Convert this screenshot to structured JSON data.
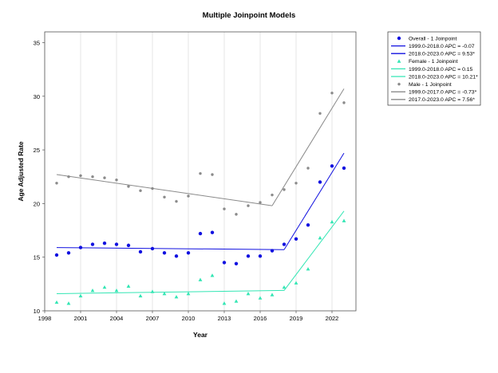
{
  "chart_data": {
    "type": "line",
    "title": "Multiple Joinpoint Models",
    "xlabel": "Year",
    "ylabel": "Age Adjusted Rate",
    "xlim": [
      1998,
      2024
    ],
    "ylim": [
      10,
      36
    ],
    "x_ticks": [
      1998,
      2001,
      2004,
      2007,
      2010,
      2013,
      2016,
      2019,
      2022
    ],
    "y_ticks": [
      10,
      15,
      20,
      25,
      30,
      35
    ],
    "grid": "vertical",
    "legend_position": "right",
    "colors": {
      "overall": "#1010e0",
      "female": "#33e6b4",
      "male": "#8a8a8a"
    },
    "series": [
      {
        "name": "Overall - 1 Joinpoint",
        "marker": "circle",
        "color_key": "overall",
        "x": [
          1999,
          2000,
          2001,
          2002,
          2003,
          2004,
          2005,
          2006,
          2007,
          2008,
          2009,
          2010,
          2011,
          2012,
          2013,
          2014,
          2015,
          2016,
          2017,
          2018,
          2019,
          2020,
          2021,
          2022,
          2023
        ],
        "y": [
          15.2,
          15.4,
          15.9,
          16.2,
          16.3,
          16.2,
          16.1,
          15.5,
          15.8,
          15.4,
          15.1,
          15.4,
          17.2,
          17.3,
          14.5,
          14.4,
          15.1,
          15.1,
          15.6,
          16.2,
          16.7,
          18.0,
          22.0,
          23.5,
          23.3
        ]
      },
      {
        "name": "Female - 1 Joinpoint",
        "marker": "triangle",
        "color_key": "female",
        "x": [
          1999,
          2000,
          2001,
          2002,
          2003,
          2004,
          2005,
          2006,
          2007,
          2008,
          2009,
          2010,
          2011,
          2012,
          2013,
          2014,
          2015,
          2016,
          2017,
          2018,
          2019,
          2020,
          2021,
          2022,
          2023
        ],
        "y": [
          10.8,
          10.7,
          11.4,
          11.9,
          12.2,
          11.9,
          12.3,
          11.4,
          11.8,
          11.6,
          11.3,
          11.6,
          12.9,
          13.3,
          10.7,
          10.9,
          11.6,
          11.2,
          11.5,
          12.2,
          12.6,
          13.9,
          16.8,
          18.3,
          18.4
        ]
      },
      {
        "name": "Male - 1 Joinpoint",
        "marker": "star",
        "color_key": "male",
        "x": [
          1999,
          2000,
          2001,
          2002,
          2003,
          2004,
          2005,
          2006,
          2007,
          2008,
          2009,
          2010,
          2011,
          2012,
          2013,
          2014,
          2015,
          2016,
          2017,
          2018,
          2019,
          2020,
          2021,
          2022,
          2023
        ],
        "y": [
          21.9,
          22.5,
          22.6,
          22.5,
          22.4,
          22.2,
          21.6,
          21.2,
          21.4,
          20.6,
          20.2,
          20.7,
          22.8,
          22.7,
          19.5,
          19.0,
          19.8,
          20.1,
          20.8,
          21.3,
          21.9,
          23.3,
          28.4,
          30.3,
          29.4
        ]
      }
    ],
    "fits": [
      {
        "name": "1999.0-2018.0 APC = -0.07",
        "color_key": "overall",
        "x": [
          1999,
          2018
        ],
        "y": [
          15.9,
          15.7
        ]
      },
      {
        "name": "2018.0-2023.0 APC = 9.53*",
        "color_key": "overall",
        "x": [
          2018,
          2023
        ],
        "y": [
          15.7,
          24.7
        ]
      },
      {
        "name": "1999.0-2018.0 APC = 0.15",
        "color_key": "female",
        "x": [
          1999,
          2018
        ],
        "y": [
          11.6,
          11.9
        ]
      },
      {
        "name": "2018.0-2023.0 APC = 10.21*",
        "color_key": "female",
        "x": [
          2018,
          2023
        ],
        "y": [
          11.9,
          19.3
        ]
      },
      {
        "name": "1999.0-2017.0 APC = -0.73*",
        "color_key": "male",
        "x": [
          1999,
          2017
        ],
        "y": [
          22.7,
          19.8
        ]
      },
      {
        "name": "2017.0-2023.0 APC = 7.56*",
        "color_key": "male",
        "x": [
          2017,
          2023
        ],
        "y": [
          19.8,
          30.7
        ]
      }
    ],
    "legend": [
      {
        "label": "Overall - 1 Joinpoint",
        "kind": "marker",
        "marker": "circle",
        "color_key": "overall"
      },
      {
        "label": "1999.0-2018.0 APC =  -0.07",
        "kind": "line",
        "color_key": "overall"
      },
      {
        "label": "2018.0-2023.0 APC =  9.53*",
        "kind": "line",
        "color_key": "overall"
      },
      {
        "label": "Female - 1 Joinpoint",
        "kind": "marker",
        "marker": "triangle",
        "color_key": "female"
      },
      {
        "label": "1999.0-2018.0 APC =  0.15",
        "kind": "line",
        "color_key": "female"
      },
      {
        "label": "2018.0-2023.0 APC =  10.21*",
        "kind": "line",
        "color_key": "female"
      },
      {
        "label": "Male - 1 Joinpoint",
        "kind": "marker",
        "marker": "star",
        "color_key": "male"
      },
      {
        "label": "1999.0-2017.0 APC =  -0.73*",
        "kind": "line",
        "color_key": "male"
      },
      {
        "label": "2017.0-2023.0 APC =  7.56*",
        "kind": "line",
        "color_key": "male"
      }
    ]
  }
}
